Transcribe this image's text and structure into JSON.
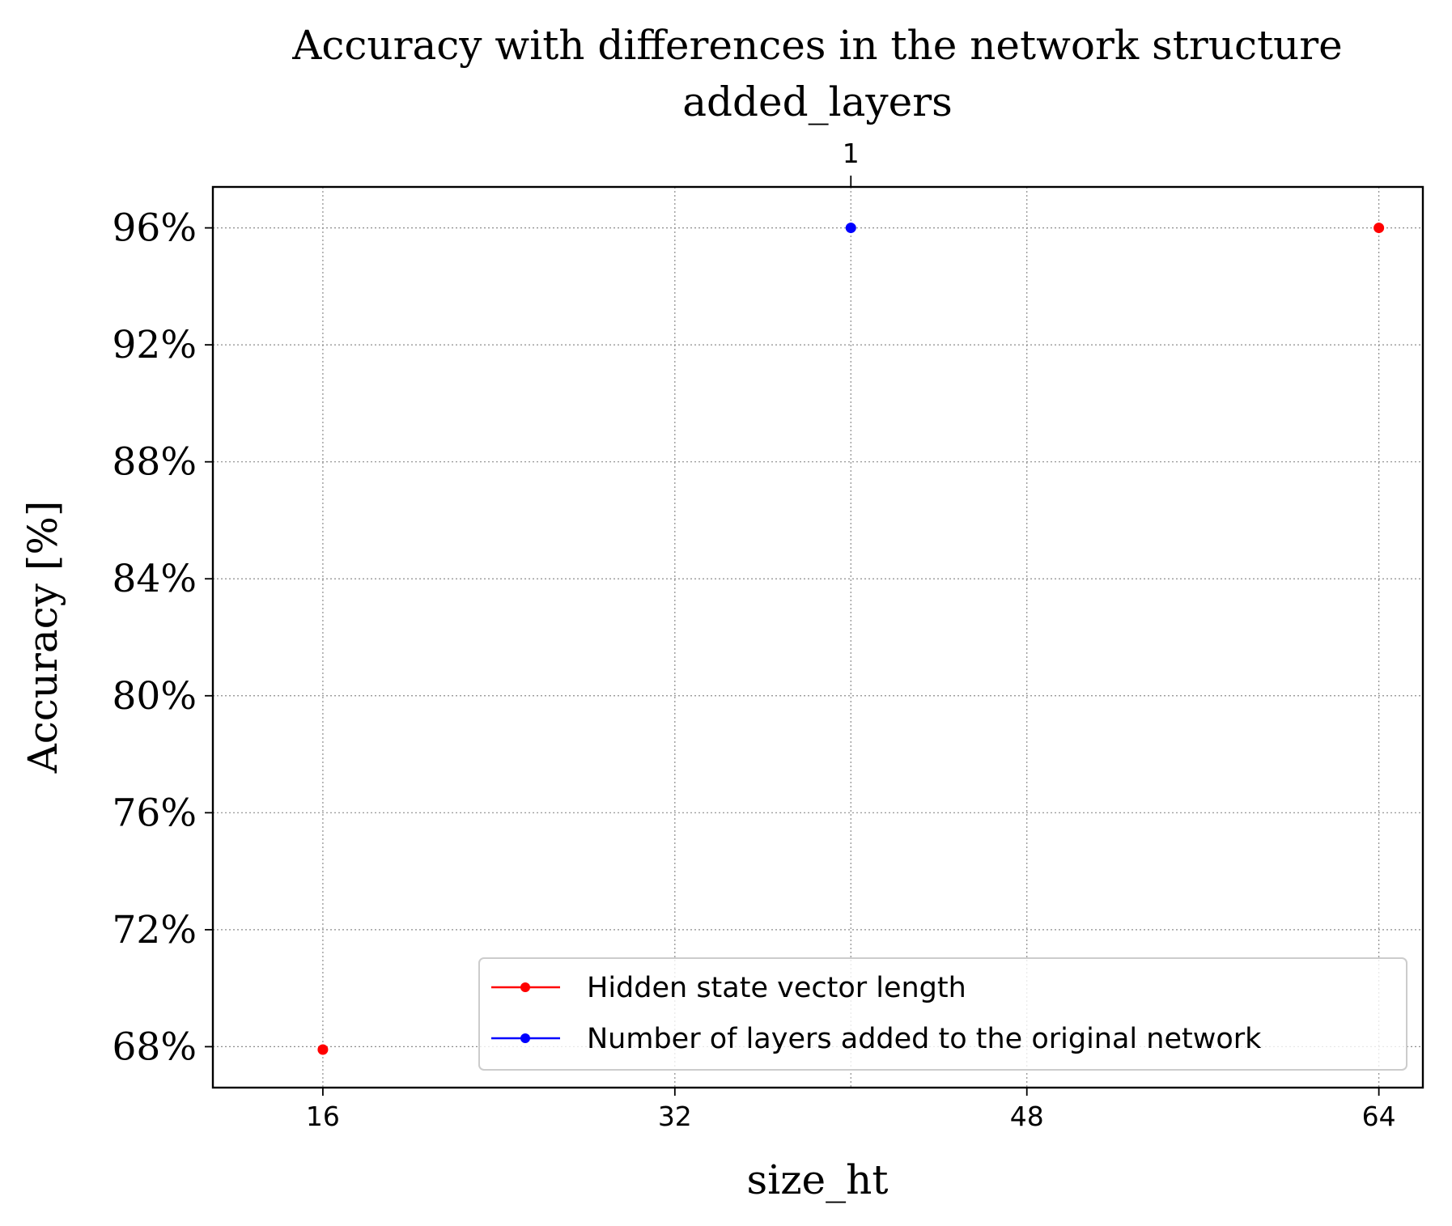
{
  "chart_data": {
    "type": "scatter",
    "title": "Accuracy with differences in the network structure",
    "top_axis_label": "added_layers",
    "top_ticks": [
      {
        "x": 40,
        "label": "1"
      }
    ],
    "xlabel": "size_ht",
    "ylabel": "Accuracy [%]",
    "xlim": [
      11,
      66
    ],
    "ylim": [
      66.6,
      97.4
    ],
    "xticks": [
      16,
      32,
      48,
      64
    ],
    "yticks": [
      68,
      72,
      76,
      80,
      84,
      88,
      92,
      96
    ],
    "ytick_suffix": "%",
    "grid": true,
    "legend_position": "lower-right",
    "series": [
      {
        "name": "Hidden state vector length",
        "color": "#ff0000",
        "points": [
          {
            "x": 16,
            "y": 67.9
          },
          {
            "x": 64,
            "y": 96.0
          }
        ]
      },
      {
        "name": "Number of layers added to the original network",
        "color": "#0000ff",
        "points": [
          {
            "x": 40,
            "y": 96.0
          }
        ]
      }
    ]
  }
}
